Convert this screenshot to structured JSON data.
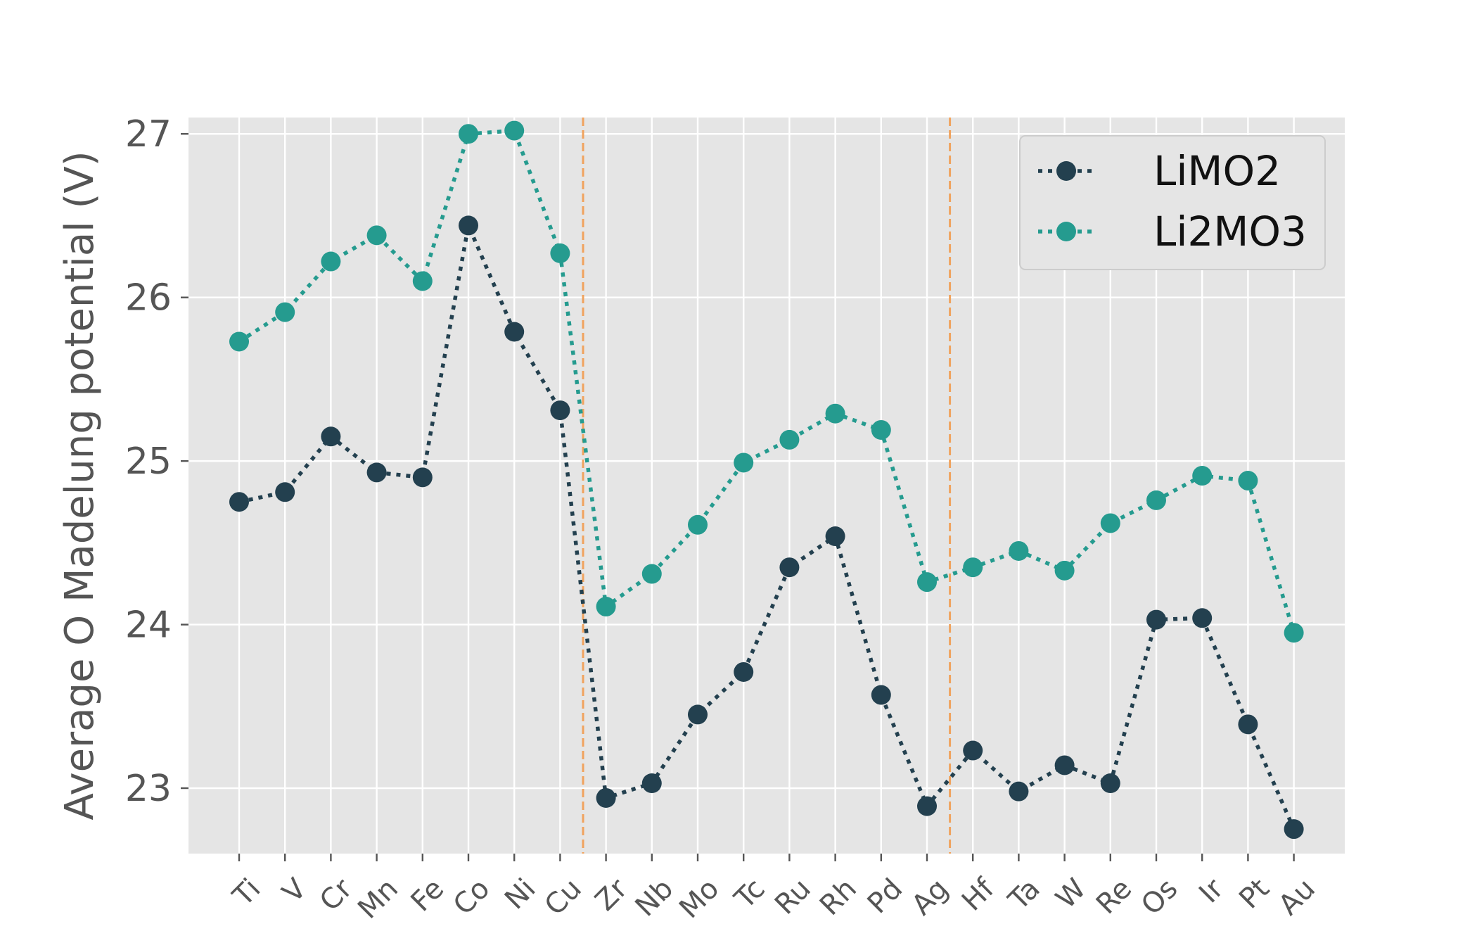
{
  "chart_data": {
    "type": "line",
    "categories": [
      "Ti",
      "V",
      "Cr",
      "Mn",
      "Fe",
      "Co",
      "Ni",
      "Cu",
      "Zr",
      "Nb",
      "Mo",
      "Tc",
      "Ru",
      "Rh",
      "Pd",
      "Ag",
      "Hf",
      "Ta",
      "W",
      "Re",
      "Os",
      "Ir",
      "Pt",
      "Au"
    ],
    "series": [
      {
        "name": "LiMO2",
        "color": "#23404f",
        "values": [
          24.75,
          24.81,
          25.15,
          24.93,
          24.9,
          26.44,
          25.79,
          25.31,
          22.94,
          23.03,
          23.45,
          23.71,
          24.35,
          24.54,
          23.57,
          22.89,
          23.23,
          22.98,
          23.14,
          23.03,
          24.03,
          24.04,
          23.39,
          22.75
        ]
      },
      {
        "name": "Li2MO3",
        "color": "#259b8f",
        "values": [
          25.73,
          25.91,
          26.22,
          26.38,
          26.1,
          27.0,
          27.02,
          26.27,
          24.11,
          24.31,
          24.61,
          24.99,
          25.13,
          25.29,
          25.19,
          24.26,
          24.35,
          24.45,
          24.33,
          24.62,
          24.76,
          24.91,
          24.88,
          23.95
        ]
      }
    ],
    "vlines_after_index": [
      7.5,
      15.5
    ],
    "vline_color": "#f0a35e",
    "xlabel": "",
    "ylabel": "Average O Madelung potential (V)",
    "ylim": [
      22.6,
      27.1
    ],
    "yticks": [
      23,
      24,
      25,
      26,
      27
    ],
    "grid": true,
    "legend_position": "upper-right",
    "background": "#e5e5e5"
  }
}
